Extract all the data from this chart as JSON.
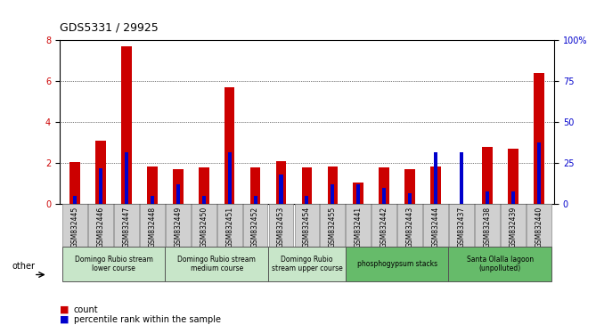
{
  "title": "GDS5331 / 29925",
  "categories": [
    "GSM832445",
    "GSM832446",
    "GSM832447",
    "GSM832448",
    "GSM832449",
    "GSM832450",
    "GSM832451",
    "GSM832452",
    "GSM832453",
    "GSM832454",
    "GSM832455",
    "GSM832441",
    "GSM832442",
    "GSM832443",
    "GSM832444",
    "GSM832437",
    "GSM832438",
    "GSM832439",
    "GSM832440"
  ],
  "count_values": [
    2.05,
    3.1,
    7.7,
    1.85,
    1.7,
    1.8,
    5.7,
    1.8,
    2.1,
    1.8,
    1.85,
    1.05,
    1.8,
    1.7,
    1.85,
    0.0,
    2.8,
    2.7,
    6.4
  ],
  "percentile_values": [
    5,
    22,
    32,
    5,
    12,
    5,
    32,
    5,
    18,
    5,
    12,
    12,
    10,
    7,
    32,
    32,
    8,
    8,
    38
  ],
  "ylim_left": [
    0,
    8
  ],
  "ylim_right": [
    0,
    100
  ],
  "yticks_left": [
    0,
    2,
    4,
    6,
    8
  ],
  "yticks_right": [
    0,
    25,
    50,
    75,
    100
  ],
  "bar_color_count": "#cc0000",
  "bar_color_pct": "#0000cc",
  "bar_width": 0.4,
  "groups": [
    {
      "label": "Domingo Rubio stream\nlower course",
      "start": 0,
      "end": 4,
      "color": "#c8e6c9"
    },
    {
      "label": "Domingo Rubio stream\nmedium course",
      "start": 4,
      "end": 8,
      "color": "#c8e6c9"
    },
    {
      "label": "Domingo Rubio\nstream upper course",
      "start": 8,
      "end": 11,
      "color": "#c8e6c9"
    },
    {
      "label": "phosphogypsum stacks",
      "start": 11,
      "end": 15,
      "color": "#66bb6a"
    },
    {
      "label": "Santa Olalla lagoon\n(unpolluted)",
      "start": 15,
      "end": 19,
      "color": "#66bb6a"
    }
  ],
  "group_box_color_light": "#c8e6c9",
  "group_box_color_dark": "#66bb6a",
  "legend_count_label": "count",
  "legend_pct_label": "percentile rank within the sample",
  "other_label": "other",
  "bg_plot": "#ffffff",
  "bg_xticklabel": "#d0d0d0",
  "grid_color": "#000000",
  "right_axis_color": "#0000cc",
  "left_axis_color": "#cc0000"
}
